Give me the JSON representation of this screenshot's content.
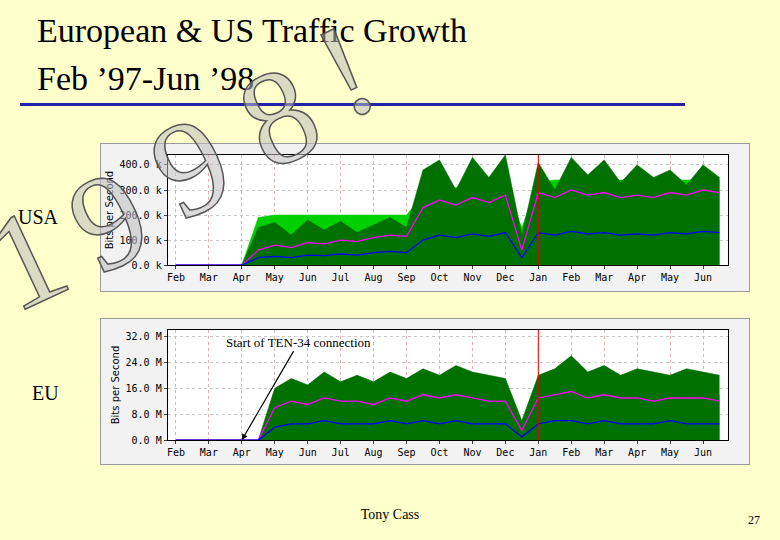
{
  "title": "European & US Traffic Growth",
  "subtitle": "Feb ’97-Jun ’98",
  "watermark": "1998!",
  "footer": "Tony Cass",
  "page_number": "27",
  "chart_data": [
    {
      "type": "area",
      "label": "USA",
      "y_label": "Bits per Second",
      "categories": [
        "Feb",
        null,
        "Mar",
        null,
        "Apr",
        null,
        "May",
        null,
        "Jun",
        null,
        "Jul",
        null,
        "Aug",
        null,
        "Sep",
        null,
        "Oct",
        null,
        "Nov",
        null,
        "Dec",
        null,
        "Jan",
        null,
        "Feb",
        null,
        "Mar",
        null,
        "Apr",
        null,
        "May",
        null,
        "Jun",
        null
      ],
      "series": [
        {
          "type": "area",
          "color": "#00d000",
          "values": [
            0,
            0,
            0,
            0,
            0,
            190000,
            200000,
            200000,
            200000,
            200000,
            200000,
            200000,
            200000,
            200000,
            200000,
            280000,
            310000,
            310000,
            310000,
            310000,
            310000,
            150000,
            330000,
            340000,
            340000,
            330000,
            340000,
            340000,
            340000,
            340000,
            340000,
            340000,
            340000,
            340000
          ]
        },
        {
          "type": "area",
          "color": "#007000",
          "values": [
            0,
            0,
            0,
            0,
            0,
            150000,
            170000,
            120000,
            180000,
            140000,
            175000,
            130000,
            160000,
            190000,
            150000,
            380000,
            420000,
            300000,
            430000,
            350000,
            440000,
            120000,
            410000,
            300000,
            430000,
            360000,
            420000,
            330000,
            400000,
            350000,
            380000,
            320000,
            400000,
            350000
          ]
        },
        {
          "type": "line",
          "color": "#ff00ff",
          "values": [
            0,
            0,
            0,
            0,
            0,
            60000,
            80000,
            70000,
            90000,
            85000,
            100000,
            95000,
            110000,
            120000,
            115000,
            230000,
            260000,
            240000,
            270000,
            250000,
            280000,
            60000,
            290000,
            270000,
            300000,
            280000,
            290000,
            270000,
            280000,
            270000,
            290000,
            280000,
            300000,
            290000
          ]
        },
        {
          "type": "line",
          "color": "#0000ff",
          "values": [
            0,
            0,
            0,
            0,
            0,
            30000,
            35000,
            30000,
            40000,
            38000,
            45000,
            40000,
            50000,
            55000,
            50000,
            100000,
            120000,
            110000,
            125000,
            115000,
            130000,
            30000,
            130000,
            120000,
            135000,
            125000,
            130000,
            120000,
            125000,
            120000,
            130000,
            125000,
            135000,
            130000
          ]
        }
      ],
      "ylim": [
        0,
        440000
      ],
      "yticks": [
        {
          "value": 0,
          "label": "0.0 k"
        },
        {
          "value": 100000,
          "label": "100.0 k"
        },
        {
          "value": 200000,
          "label": "200.0 k"
        },
        {
          "value": 300000,
          "label": "300.0 k"
        },
        {
          "value": 400000,
          "label": "400.0 k"
        }
      ],
      "grid": true
    },
    {
      "type": "area",
      "label": "EU",
      "y_label": "Bits per Second",
      "categories": [
        "Feb",
        null,
        "Mar",
        null,
        "Apr",
        null,
        "May",
        null,
        "Jun",
        null,
        "Jul",
        null,
        "Aug",
        null,
        "Sep",
        null,
        "Oct",
        null,
        "Nov",
        null,
        "Dec",
        null,
        "Jan",
        null,
        "Feb",
        null,
        "Mar",
        null,
        "Apr",
        null,
        "May",
        null,
        "Jun",
        null
      ],
      "series": [
        {
          "type": "area",
          "color": "#00d000",
          "values": [
            0,
            0,
            0,
            0,
            0,
            0,
            12000000,
            12000000,
            13000000,
            12000000,
            13000000,
            12000000,
            12000000,
            13000000,
            13000000,
            14000000,
            14000000,
            14000000,
            13000000,
            14000000,
            13000000,
            4000000,
            14000000,
            14000000,
            15000000,
            14000000,
            14000000,
            14000000,
            14000000,
            13000000,
            14000000,
            14000000,
            14000000,
            14000000
          ]
        },
        {
          "type": "area",
          "color": "#007000",
          "values": [
            0,
            0,
            0,
            0,
            0,
            0,
            16000000,
            19000000,
            17000000,
            21000000,
            18000000,
            20000000,
            18000000,
            21000000,
            19000000,
            22000000,
            20000000,
            23000000,
            21000000,
            20000000,
            19000000,
            6000000,
            20000000,
            22000000,
            26000000,
            21000000,
            23000000,
            20000000,
            22000000,
            21000000,
            20000000,
            22000000,
            21000000,
            20000000
          ]
        },
        {
          "type": "line",
          "color": "#ff00ff",
          "values": [
            0,
            0,
            0,
            0,
            0,
            0,
            10000000,
            12000000,
            11000000,
            13000000,
            12000000,
            12000000,
            11000000,
            13000000,
            12000000,
            14000000,
            13000000,
            14000000,
            13000000,
            12000000,
            12000000,
            3000000,
            13000000,
            14000000,
            15000000,
            13000000,
            14000000,
            13000000,
            13000000,
            12000000,
            13000000,
            13000000,
            13000000,
            12000000
          ]
        },
        {
          "type": "line",
          "color": "#0000ff",
          "values": [
            0,
            0,
            0,
            0,
            0,
            0,
            4000000,
            5000000,
            5000000,
            6000000,
            5000000,
            5000000,
            5000000,
            6000000,
            5000000,
            6000000,
            5000000,
            6000000,
            5000000,
            5000000,
            5000000,
            1000000,
            5000000,
            6000000,
            6000000,
            5000000,
            6000000,
            5000000,
            5000000,
            5000000,
            6000000,
            5000000,
            5000000,
            5000000
          ]
        }
      ],
      "ylim": [
        0,
        34000000
      ],
      "yticks": [
        {
          "value": 0,
          "label": "0.0 M"
        },
        {
          "value": 8000000,
          "label": "8.0 M"
        },
        {
          "value": 16000000,
          "label": "16.0 M"
        },
        {
          "value": 24000000,
          "label": "24.0 M"
        },
        {
          "value": 32000000,
          "label": "32.0 M"
        }
      ],
      "grid": true,
      "annotations": [
        {
          "text": "Start of TEN-34 connection",
          "x": "Apr",
          "y": 0
        }
      ]
    }
  ]
}
